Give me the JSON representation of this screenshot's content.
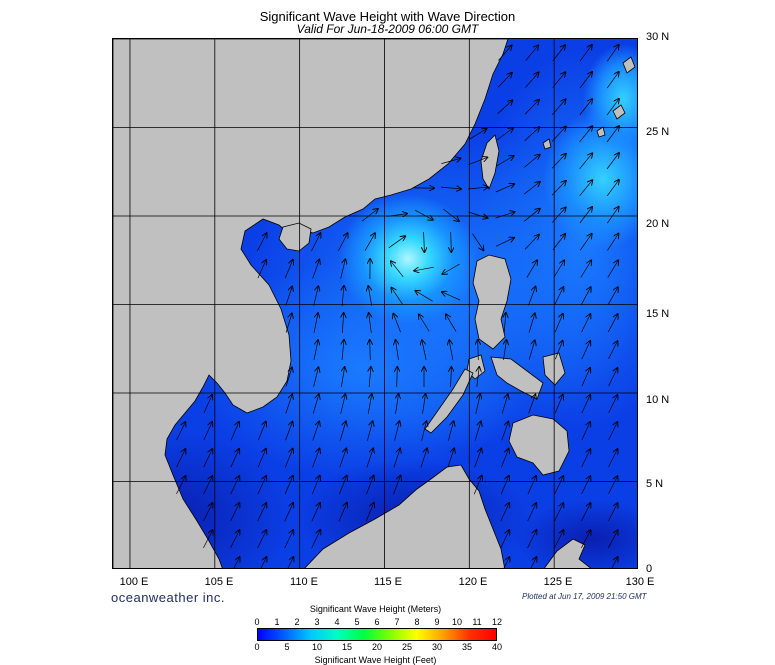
{
  "header": {
    "title": "Significant Wave Height with Wave Direction",
    "subtitle": "Valid For Jun-18-2009 06:00 GMT"
  },
  "map": {
    "lon_range": [
      99,
      130
    ],
    "lat_range": [
      0,
      30
    ],
    "lat_labels": [
      "30 N",
      "25 N",
      "20 N",
      "15 N",
      "10 N",
      "5 N",
      "0"
    ],
    "lon_labels": [
      "100 E",
      "105 E",
      "110 E",
      "115 E",
      "120 E",
      "125 E",
      "130 E"
    ],
    "grid_lats": [
      25,
      20,
      15,
      10,
      5
    ],
    "grid_lons": [
      100,
      105,
      110,
      115,
      120,
      125
    ],
    "ocean_base_color": "#0b3fe6",
    "land_color": "#c0c0c0",
    "storm_center": {
      "lon": 116.2,
      "lat": 18.2
    }
  },
  "footer": {
    "brand": "oceanweather inc.",
    "plotted": "Plotted at Jun 17, 2009 21:50 GMT"
  },
  "colorbar": {
    "title_meters": "Significant Wave Height (Meters)",
    "title_feet": "Significant Wave Height (Feet)",
    "meter_ticks": [
      "0",
      "1",
      "2",
      "3",
      "4",
      "5",
      "6",
      "7",
      "8",
      "9",
      "10",
      "11",
      "12"
    ],
    "feet_ticks": [
      "0",
      "5",
      "10",
      "15",
      "20",
      "25",
      "30",
      "35",
      "40"
    ],
    "colors": [
      "#0000ff",
      "#0060ff",
      "#00c8ff",
      "#00ffc0",
      "#00ff40",
      "#80ff00",
      "#ffff00",
      "#ffa000",
      "#ff3000",
      "#ff0000"
    ]
  }
}
